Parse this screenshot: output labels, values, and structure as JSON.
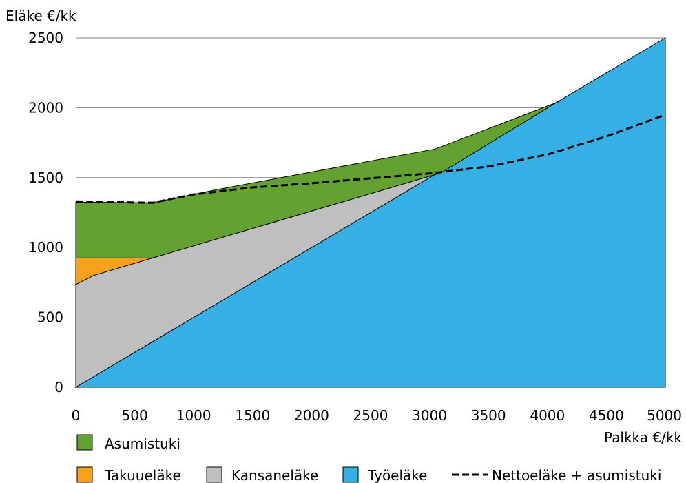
{
  "chart_data": {
    "type": "area",
    "ylabel": "Eläke €/kk",
    "xlabel": "Palkka €/kk",
    "xlim": [
      0,
      5000
    ],
    "ylim": [
      0,
      2500
    ],
    "xticks": [
      "0",
      "500",
      "1000",
      "1500",
      "2000",
      "2500",
      "3000",
      "3500",
      "4000",
      "4500",
      "5000"
    ],
    "yticks": [
      "0",
      "500",
      "1000",
      "1500",
      "2000",
      "2500"
    ],
    "grid": "horizontal",
    "legend": "bottom",
    "series": [
      {
        "name": "Työeläke",
        "color": "#35afe4",
        "points": [
          [
            0,
            0
          ],
          [
            5000,
            2500
          ]
        ]
      },
      {
        "name": "Kansaneläke",
        "color": "#bfbfbf",
        "points": [
          [
            0,
            735
          ],
          [
            150,
            800
          ],
          [
            650,
            925
          ],
          [
            3100,
            1535
          ]
        ]
      },
      {
        "name": "Takuueläke",
        "color": "#f7a21b",
        "points": [
          [
            0,
            925
          ],
          [
            650,
            925
          ]
        ]
      },
      {
        "name": "Asumistuki",
        "color": "#63a230",
        "points": [
          [
            0,
            1325
          ],
          [
            650,
            1320
          ],
          [
            1200,
            1415
          ],
          [
            3050,
            1705
          ],
          [
            4100,
            2045
          ]
        ]
      },
      {
        "name": "Nettoeläke + asumistuki",
        "style": "dashed",
        "color": "#000000",
        "points": [
          [
            0,
            1330
          ],
          [
            650,
            1320
          ],
          [
            1000,
            1380
          ],
          [
            1500,
            1430
          ],
          [
            2000,
            1460
          ],
          [
            2500,
            1495
          ],
          [
            3000,
            1530
          ],
          [
            3500,
            1580
          ],
          [
            4000,
            1665
          ],
          [
            4500,
            1795
          ],
          [
            5000,
            1950
          ]
        ]
      }
    ]
  }
}
